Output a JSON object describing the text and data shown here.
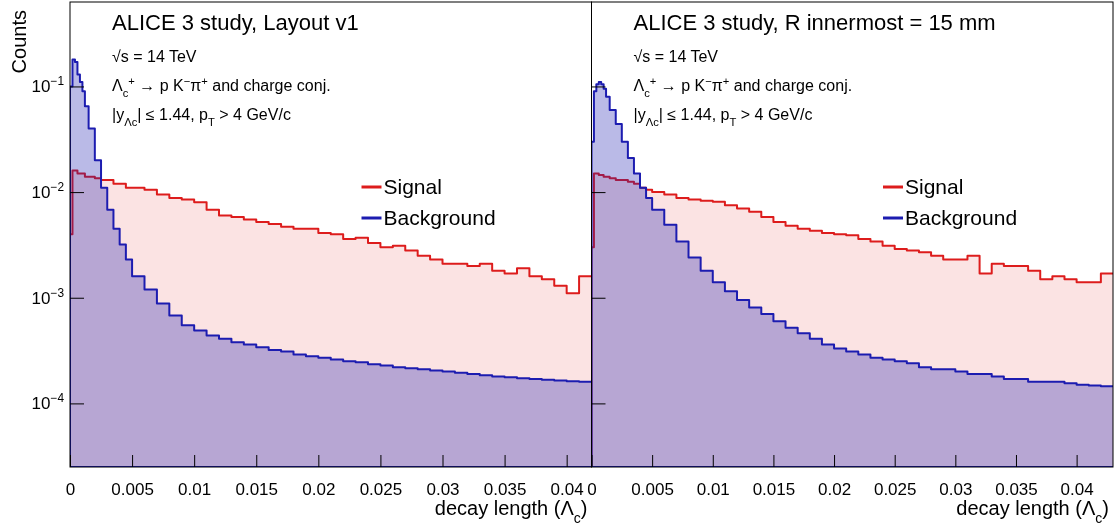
{
  "chart_data": [
    {
      "type": "area",
      "title": "ALICE 3 study, Layout v1",
      "annotations": [
        "√s = 14 TeV",
        "Λ$_{c}$$^{+}$ → p K$^{−}$π$^{+}$  and charge conj.",
        "|y$_{Λc}$| ≤ 1.44,  p$_{T}$ > 4 GeV/c"
      ],
      "xlabel": "decay length (Λ$_{c}$)",
      "ylabel": "Counts",
      "log": true,
      "legend": "right",
      "xlim": [
        0,
        0.042
      ],
      "xticks": [
        0,
        0.005,
        0.01,
        0.015,
        0.02,
        0.025,
        0.03,
        0.035,
        0.04
      ],
      "ylim": [
        2.5e-05,
        0.63
      ],
      "yticks": [
        {
          "value": 0.0001,
          "label": "10$^{−4}$"
        },
        {
          "value": 0.001,
          "label": "10$^{−3}$"
        },
        {
          "value": 0.01,
          "label": "10$^{−2}$"
        },
        {
          "value": 0.1,
          "label": "10$^{−1}$"
        }
      ],
      "x": [
        0,
        0.0002,
        0.0004,
        0.0006,
        0.0008,
        0.001,
        0.0012,
        0.0015,
        0.002,
        0.0025,
        0.003,
        0.0035,
        0.004,
        0.0045,
        0.005,
        0.006,
        0.007,
        0.008,
        0.009,
        0.01,
        0.011,
        0.012,
        0.013,
        0.014,
        0.015,
        0.016,
        0.017,
        0.018,
        0.019,
        0.02,
        0.021,
        0.022,
        0.023,
        0.024,
        0.025,
        0.026,
        0.027,
        0.028,
        0.029,
        0.03,
        0.031,
        0.032,
        0.033,
        0.034,
        0.035,
        0.036,
        0.037,
        0.038,
        0.039,
        0.04,
        0.041
      ],
      "series": [
        {
          "name": "Signal",
          "color": "#dd1c1c",
          "values": [
            0.004,
            0.016,
            0.016,
            0.015,
            0.015,
            0.015,
            0.014,
            0.014,
            0.0135,
            0.013,
            0.013,
            0.012,
            0.012,
            0.011,
            0.011,
            0.0105,
            0.0095,
            0.0088,
            0.0085,
            0.008,
            0.0068,
            0.006,
            0.0058,
            0.0055,
            0.0052,
            0.005,
            0.0047,
            0.0045,
            0.0045,
            0.0041,
            0.004,
            0.0036,
            0.0037,
            0.0033,
            0.003,
            0.0031,
            0.0028,
            0.0025,
            0.0023,
            0.0021,
            0.0021,
            0.002,
            0.0021,
            0.0018,
            0.0017,
            0.0019,
            0.0016,
            0.0015,
            0.0013,
            0.0011,
            0.0016
          ]
        },
        {
          "name": "Background",
          "color": "#1c1cb0",
          "values": [
            0.1,
            0.18,
            0.17,
            0.13,
            0.11,
            0.09,
            0.065,
            0.04,
            0.02,
            0.011,
            0.0068,
            0.0045,
            0.0032,
            0.0023,
            0.0016,
            0.0012,
            0.00088,
            0.00068,
            0.00055,
            0.00049,
            0.00044,
            0.00041,
            0.00038,
            0.00036,
            0.00034,
            0.00032,
            0.00031,
            0.00029,
            0.00028,
            0.00027,
            0.00026,
            0.00025,
            0.000245,
            0.000235,
            0.000228,
            0.00022,
            0.000215,
            0.00021,
            0.000205,
            0.0002,
            0.000195,
            0.00019,
            0.000185,
            0.00018,
            0.000177,
            0.000173,
            0.00017,
            0.000167,
            0.000165,
            0.000162,
            0.00016
          ]
        }
      ]
    },
    {
      "type": "area",
      "title": "ALICE 3 study, R innermost = 15 mm",
      "annotations": [
        "√s = 14 TeV",
        "Λ$_{c}$$^{+}$ → p K$^{−}$π$^{+}$  and charge conj.",
        "|y$_{Λc}$| ≤ 1.44,  p$_{T}$ > 4 GeV/c"
      ],
      "xlabel": "decay length (Λ$_{c}$)",
      "log": true,
      "legend": "right",
      "tick_labels": "x",
      "xlim": [
        0,
        0.043
      ],
      "xticks": [
        0,
        0.005,
        0.01,
        0.015,
        0.02,
        0.025,
        0.03,
        0.035,
        0.04
      ],
      "ylim": [
        2.5e-05,
        0.63
      ],
      "yticks": [
        {
          "value": 0.0001,
          "label": null
        },
        {
          "value": 0.001,
          "label": null
        },
        {
          "value": 0.01,
          "label": null
        },
        {
          "value": 0.1,
          "label": null
        }
      ],
      "x": [
        0,
        0.0002,
        0.0004,
        0.0006,
        0.0008,
        0.001,
        0.0012,
        0.0015,
        0.002,
        0.0025,
        0.003,
        0.0035,
        0.004,
        0.0045,
        0.005,
        0.006,
        0.007,
        0.008,
        0.009,
        0.01,
        0.011,
        0.012,
        0.013,
        0.014,
        0.015,
        0.016,
        0.017,
        0.018,
        0.019,
        0.02,
        0.021,
        0.022,
        0.023,
        0.024,
        0.025,
        0.026,
        0.027,
        0.028,
        0.029,
        0.03,
        0.031,
        0.032,
        0.033,
        0.034,
        0.035,
        0.036,
        0.037,
        0.038,
        0.039,
        0.04,
        0.041,
        0.042
      ],
      "series": [
        {
          "name": "Signal",
          "color": "#dd1c1c",
          "values": [
            0.003,
            0.015,
            0.015,
            0.0145,
            0.0145,
            0.014,
            0.014,
            0.0135,
            0.013,
            0.013,
            0.0125,
            0.012,
            0.011,
            0.0105,
            0.01,
            0.0095,
            0.0088,
            0.0085,
            0.0083,
            0.0081,
            0.0075,
            0.007,
            0.0065,
            0.0058,
            0.0052,
            0.0048,
            0.0045,
            0.0043,
            0.0041,
            0.004,
            0.0039,
            0.0036,
            0.0034,
            0.0031,
            0.0029,
            0.0028,
            0.0027,
            0.0025,
            0.0023,
            0.0023,
            0.0025,
            0.0017,
            0.0021,
            0.002,
            0.002,
            0.0018,
            0.0015,
            0.0016,
            0.0015,
            0.0014,
            0.0014,
            0.0017
          ]
        },
        {
          "name": "Background",
          "color": "#1c1cb0",
          "values": [
            0.03,
            0.09,
            0.105,
            0.11,
            0.105,
            0.095,
            0.08,
            0.06,
            0.044,
            0.03,
            0.021,
            0.015,
            0.011,
            0.0088,
            0.0068,
            0.0049,
            0.0034,
            0.0024,
            0.0018,
            0.0014,
            0.00115,
            0.00095,
            0.00081,
            0.0007,
            0.0006,
            0.00052,
            0.00046,
            0.00041,
            0.00036,
            0.00033,
            0.00031,
            0.00029,
            0.00027,
            0.00026,
            0.00025,
            0.00024,
            0.00022,
            0.00021,
            0.00021,
            0.0002,
            0.00019,
            0.00019,
            0.00018,
            0.00017,
            0.00017,
            0.00016,
            0.00016,
            0.00016,
            0.000155,
            0.00015,
            0.000148,
            0.000145
          ]
        }
      ]
    }
  ]
}
